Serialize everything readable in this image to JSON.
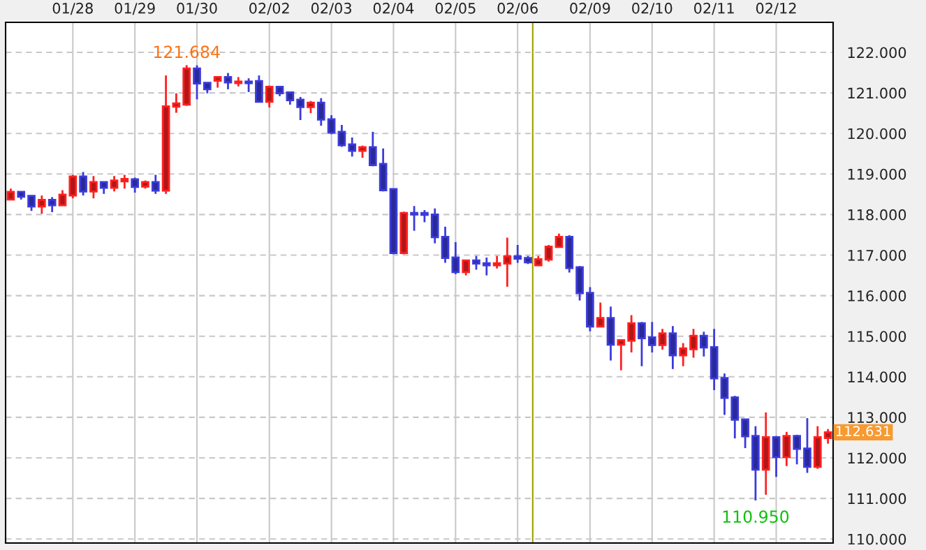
{
  "chart_data": {
    "type": "candlestick",
    "categories": [
      null,
      null,
      null,
      null,
      null,
      null,
      "01/28",
      null,
      null,
      null,
      null,
      null,
      "01/29",
      null,
      null,
      null,
      null,
      null,
      "01/30",
      null,
      null,
      null,
      null,
      null,
      null,
      "02/02",
      null,
      null,
      null,
      null,
      null,
      "02/03",
      null,
      null,
      null,
      null,
      null,
      "02/04",
      null,
      null,
      null,
      null,
      null,
      "02/05",
      null,
      null,
      null,
      null,
      null,
      "02/06",
      null,
      null,
      null,
      null,
      null,
      null,
      "02/09",
      null,
      null,
      null,
      null,
      null,
      "02/10",
      null,
      null,
      null,
      null,
      null,
      "02/11",
      null,
      null,
      null,
      null,
      null,
      "02/12",
      null,
      null,
      null,
      null,
      null
    ],
    "ohlc": [
      [
        118.37,
        118.64,
        118.37,
        118.56
      ],
      [
        118.56,
        118.56,
        118.37,
        118.44
      ],
      [
        118.46,
        118.46,
        118.09,
        118.2
      ],
      [
        118.2,
        118.47,
        118.02,
        118.36
      ],
      [
        118.36,
        118.43,
        118.06,
        118.23
      ],
      [
        118.23,
        118.6,
        118.23,
        118.49
      ],
      [
        118.47,
        118.98,
        118.4,
        118.94
      ],
      [
        118.94,
        119.05,
        118.47,
        118.57
      ],
      [
        118.57,
        118.95,
        118.4,
        118.8
      ],
      [
        118.8,
        118.8,
        118.51,
        118.66
      ],
      [
        118.66,
        118.95,
        118.57,
        118.84
      ],
      [
        118.82,
        118.98,
        118.64,
        118.88
      ],
      [
        118.87,
        118.91,
        118.54,
        118.68
      ],
      [
        118.69,
        118.84,
        118.64,
        118.8
      ],
      [
        118.8,
        118.98,
        118.51,
        118.59
      ],
      [
        118.59,
        121.43,
        118.51,
        120.67
      ],
      [
        120.66,
        120.99,
        120.51,
        120.74
      ],
      [
        120.71,
        121.684,
        120.68,
        121.6
      ],
      [
        121.6,
        121.68,
        120.84,
        121.23
      ],
      [
        121.25,
        121.25,
        120.99,
        121.09
      ],
      [
        121.3,
        121.39,
        121.13,
        121.39
      ],
      [
        121.39,
        121.49,
        121.09,
        121.26
      ],
      [
        121.24,
        121.39,
        121.16,
        121.28
      ],
      [
        121.28,
        121.36,
        121.02,
        121.24
      ],
      [
        121.29,
        121.43,
        120.78,
        120.78
      ],
      [
        120.78,
        121.18,
        120.64,
        121.15
      ],
      [
        121.15,
        121.15,
        120.92,
        120.99
      ],
      [
        121.01,
        121.01,
        120.71,
        120.82
      ],
      [
        120.83,
        120.9,
        120.33,
        120.65
      ],
      [
        120.65,
        120.8,
        120.5,
        120.76
      ],
      [
        120.76,
        120.87,
        120.19,
        120.34
      ],
      [
        120.35,
        120.45,
        119.98,
        120.02
      ],
      [
        120.04,
        120.21,
        119.67,
        119.71
      ],
      [
        119.73,
        119.9,
        119.43,
        119.57
      ],
      [
        119.57,
        119.7,
        119.4,
        119.66
      ],
      [
        119.66,
        120.04,
        119.19,
        119.22
      ],
      [
        119.25,
        119.63,
        118.57,
        118.6
      ],
      [
        118.63,
        118.63,
        117.02,
        117.05
      ],
      [
        117.05,
        118.07,
        117.02,
        118.04
      ],
      [
        118.04,
        118.21,
        117.6,
        118.0
      ],
      [
        118.04,
        118.11,
        117.81,
        117.99
      ],
      [
        118.0,
        118.15,
        117.29,
        117.44
      ],
      [
        117.45,
        117.7,
        116.81,
        116.93
      ],
      [
        116.94,
        117.32,
        116.53,
        116.58
      ],
      [
        116.58,
        116.87,
        116.5,
        116.87
      ],
      [
        116.87,
        116.98,
        116.64,
        116.79
      ],
      [
        116.8,
        116.94,
        116.5,
        116.75
      ],
      [
        116.75,
        116.98,
        116.67,
        116.8
      ],
      [
        116.79,
        117.43,
        116.22,
        116.97
      ],
      [
        116.97,
        117.25,
        116.81,
        116.91
      ],
      [
        116.93,
        116.98,
        116.78,
        116.82
      ],
      [
        116.75,
        116.98,
        116.75,
        116.9
      ],
      [
        116.89,
        117.25,
        116.84,
        117.21
      ],
      [
        117.2,
        117.53,
        117.2,
        117.45
      ],
      [
        117.45,
        117.49,
        116.57,
        116.68
      ],
      [
        116.7,
        116.73,
        115.88,
        116.06
      ],
      [
        116.07,
        116.21,
        115.12,
        115.24
      ],
      [
        115.24,
        115.83,
        115.24,
        115.45
      ],
      [
        115.45,
        115.73,
        114.4,
        114.79
      ],
      [
        114.79,
        114.9,
        114.16,
        114.9
      ],
      [
        114.89,
        115.52,
        114.6,
        115.32
      ],
      [
        115.32,
        115.35,
        114.26,
        114.95
      ],
      [
        114.97,
        115.35,
        114.6,
        114.78
      ],
      [
        114.78,
        115.18,
        114.67,
        115.07
      ],
      [
        115.07,
        115.25,
        114.19,
        114.53
      ],
      [
        114.53,
        114.83,
        114.26,
        114.7
      ],
      [
        114.68,
        115.18,
        114.47,
        115.01
      ],
      [
        115.01,
        115.11,
        114.5,
        114.72
      ],
      [
        114.73,
        115.18,
        113.67,
        113.96
      ],
      [
        113.97,
        114.08,
        113.06,
        113.48
      ],
      [
        113.49,
        113.53,
        112.48,
        112.94
      ],
      [
        112.95,
        112.95,
        112.24,
        112.53
      ],
      [
        112.54,
        112.78,
        110.95,
        111.71
      ],
      [
        111.71,
        113.12,
        111.09,
        112.51
      ],
      [
        112.51,
        112.54,
        111.53,
        112.02
      ],
      [
        112.02,
        112.64,
        111.8,
        112.54
      ],
      [
        112.54,
        112.57,
        111.84,
        112.22
      ],
      [
        112.23,
        112.98,
        111.63,
        111.78
      ],
      [
        111.78,
        112.78,
        111.73,
        112.51
      ],
      [
        112.49,
        112.71,
        112.35,
        112.631
      ]
    ],
    "colors": [
      "#ff2020",
      "#3b3bdb",
      "#3b3bdb",
      "#ff2020",
      "#3b3bdb",
      "#ff2020",
      "#ff2020",
      "#3b3bdb",
      "#ff2020",
      "#3b3bdb",
      "#ff2020",
      "#ff2020",
      "#3b3bdb",
      "#ff2020",
      "#3b3bdb",
      "#ff2020",
      "#ff2020",
      "#ff2020",
      "#3b3bdb",
      "#3b3bdb",
      "#ff2020",
      "#3b3bdb",
      "#ff2020",
      "#3b3bdb",
      "#3b3bdb",
      "#ff2020",
      "#3b3bdb",
      "#3b3bdb",
      "#3b3bdb",
      "#ff2020",
      "#3b3bdb",
      "#3b3bdb",
      "#3b3bdb",
      "#3b3bdb",
      "#ff2020",
      "#3b3bdb",
      "#3b3bdb",
      "#3b3bdb",
      "#ff2020",
      "#3b3bdb",
      "#3b3bdb",
      "#3b3bdb",
      "#3b3bdb",
      "#3b3bdb",
      "#ff2020",
      "#3b3bdb",
      "#3b3bdb",
      "#ff2020",
      "#ff2020",
      "#3b3bdb",
      "#3b3bdb",
      "#ff2020",
      "#ff2020",
      "#ff2020",
      "#3b3bdb",
      "#3b3bdb",
      "#3b3bdb",
      "#ff2020",
      "#3b3bdb",
      "#ff2020",
      "#ff2020",
      "#3b3bdb",
      "#3b3bdb",
      "#ff2020",
      "#3b3bdb",
      "#ff2020",
      "#ff2020",
      "#3b3bdb",
      "#3b3bdb",
      "#3b3bdb",
      "#3b3bdb",
      "#3b3bdb",
      "#3b3bdb",
      "#ff2020",
      "#3b3bdb",
      "#ff2020",
      "#3b3bdb",
      "#3b3bdb",
      "#ff2020",
      "#ff2020"
    ],
    "ylim": [
      109.9,
      122.74
    ],
    "yticks": [
      {
        "value": 110,
        "label": "110.000"
      },
      {
        "value": 111,
        "label": "111.000"
      },
      {
        "value": 112,
        "label": "112.000"
      },
      {
        "value": 113,
        "label": "113.000"
      },
      {
        "value": 114,
        "label": "114.000"
      },
      {
        "value": 115,
        "label": "115.000"
      },
      {
        "value": 116,
        "label": "116.000"
      },
      {
        "value": 117,
        "label": "117.000"
      },
      {
        "value": 118,
        "label": "118.000"
      },
      {
        "value": 119,
        "label": "119.000"
      },
      {
        "value": 120,
        "label": "120.000"
      },
      {
        "value": 121,
        "label": "121.000"
      },
      {
        "value": 122,
        "label": "122.000"
      }
    ],
    "grid": true,
    "annotations": [
      {
        "text": "121.684",
        "y": 121.684
      },
      {
        "text": "110.950",
        "y": 110.95
      },
      "112.631"
    ]
  }
}
